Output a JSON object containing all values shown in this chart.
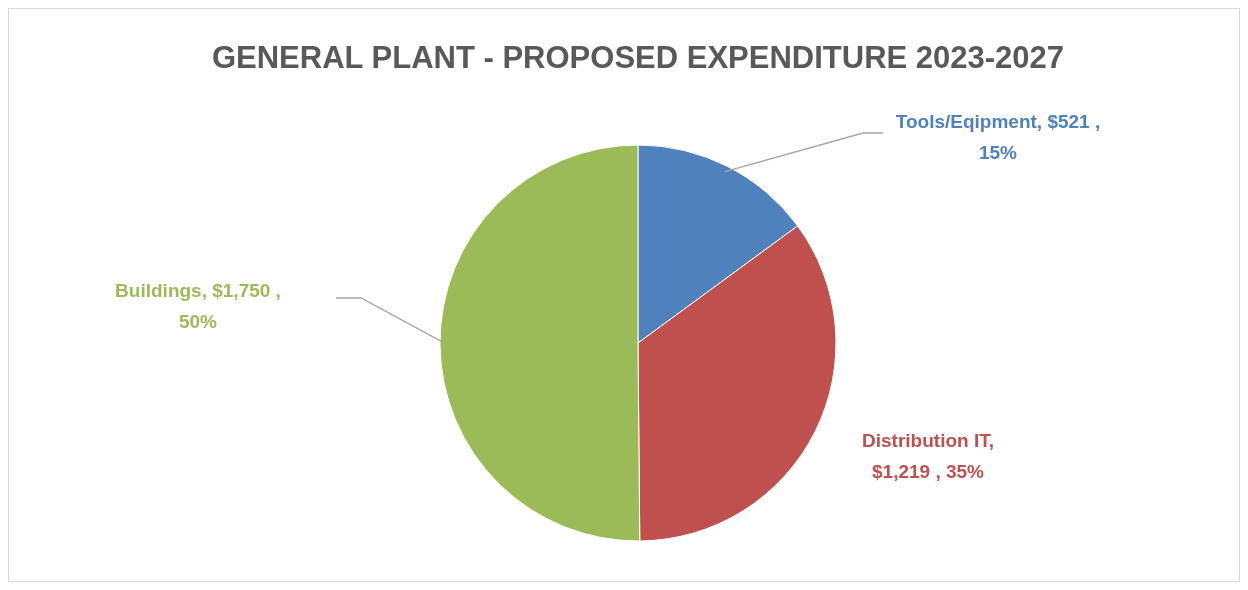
{
  "chart_data": {
    "type": "pie",
    "title": "GENERAL PLANT - PROPOSED EXPENDITURE 2023-2027",
    "categories": [
      "Tools/Eqipment",
      "Distribution IT",
      "Buildings"
    ],
    "values": [
      521,
      1219,
      1750
    ],
    "colors": [
      "#4f81bd",
      "#c0504d",
      "#9bbb59"
    ],
    "value_labels": [
      ",  $521 ,\n15%",
      ",\n$1,219 , 35%",
      ",  $1,750 ,\n50%"
    ]
  }
}
